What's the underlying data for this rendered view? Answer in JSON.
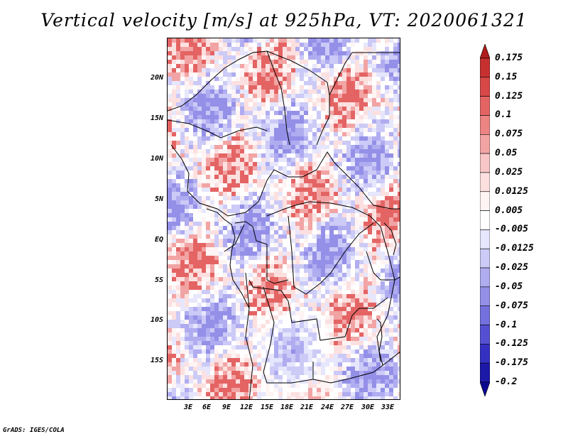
{
  "title": "Vertical velocity [m/s] at 925hPa, VT: 2020061321",
  "map": {
    "y_axis_labels": [
      "20N",
      "15N",
      "10N",
      "5N",
      "EQ",
      "5S",
      "10S",
      "15S"
    ],
    "x_axis_labels": [
      "3E",
      "6E",
      "9E",
      "12E",
      "15E",
      "18E",
      "21E",
      "24E",
      "27E",
      "30E",
      "33E"
    ]
  },
  "colorbar": {
    "labels": [
      "0.175",
      "0.15",
      "0.125",
      "0.1",
      "0.075",
      "0.05",
      "0.025",
      "0.0125",
      "0.005",
      "-0.005",
      "-0.0125",
      "-0.025",
      "-0.05",
      "-0.075",
      "-0.1",
      "-0.125",
      "-0.175",
      "-0.2"
    ],
    "colors": [
      "#b01c1c",
      "#c63030",
      "#d84848",
      "#e46464",
      "#ec8484",
      "#f2a4a4",
      "#f8c6c6",
      "#fce0e0",
      "#fff4f4",
      "#ffffff",
      "#e6e6fc",
      "#cccaf6",
      "#b0acf0",
      "#9490e8",
      "#7470de",
      "#5550d2",
      "#3430c2",
      "#1c18a8",
      "#0c0890"
    ]
  },
  "credit": "GrADS: IGES/COLA"
}
